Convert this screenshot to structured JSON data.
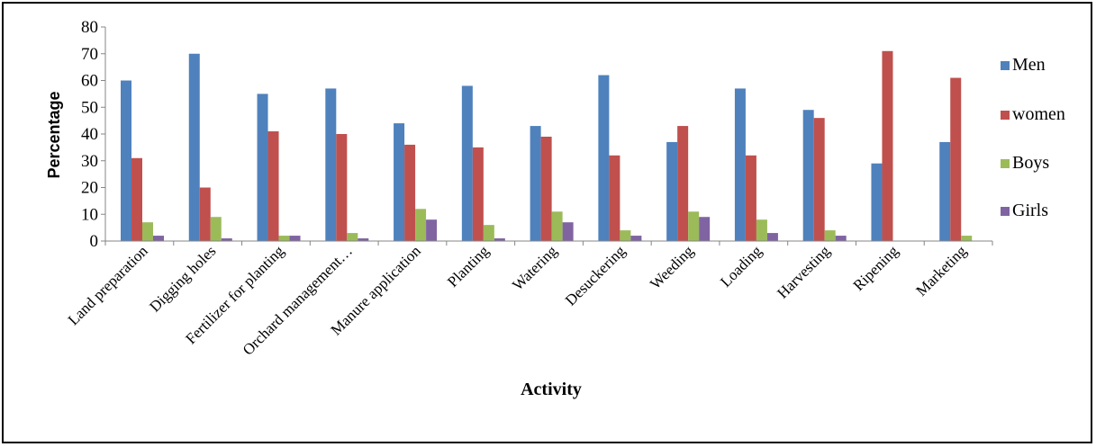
{
  "chart_data": {
    "type": "bar",
    "title": "",
    "xlabel": "Activity",
    "ylabel": "Percentage",
    "ylim": [
      0,
      80
    ],
    "yticks": [
      0,
      10,
      20,
      30,
      40,
      50,
      60,
      70,
      80
    ],
    "grid": false,
    "legend_position": "right",
    "categories": [
      "Land preparation",
      "Digging holes",
      "Fertilizer for planting",
      "Orchard management…",
      "Manure application",
      "Planting",
      "Watering",
      "Desuckering",
      "Weeding",
      "Loading",
      "Harvesting",
      "Ripening",
      "Marketing"
    ],
    "series": [
      {
        "name": "Men",
        "color": "#4F81BD",
        "values": [
          60,
          70,
          55,
          57,
          44,
          58,
          43,
          62,
          37,
          57,
          49,
          29,
          37
        ]
      },
      {
        "name": "women",
        "color": "#C0504D",
        "values": [
          31,
          20,
          41,
          40,
          36,
          35,
          39,
          32,
          43,
          32,
          46,
          71,
          61
        ]
      },
      {
        "name": "Boys",
        "color": "#9BBB59",
        "values": [
          7,
          9,
          2,
          3,
          12,
          6,
          11,
          4,
          11,
          8,
          4,
          0,
          2
        ]
      },
      {
        "name": "Girls",
        "color": "#8064A2",
        "values": [
          2,
          1,
          2,
          1,
          8,
          1,
          7,
          2,
          9,
          3,
          2,
          0,
          0
        ]
      }
    ]
  }
}
